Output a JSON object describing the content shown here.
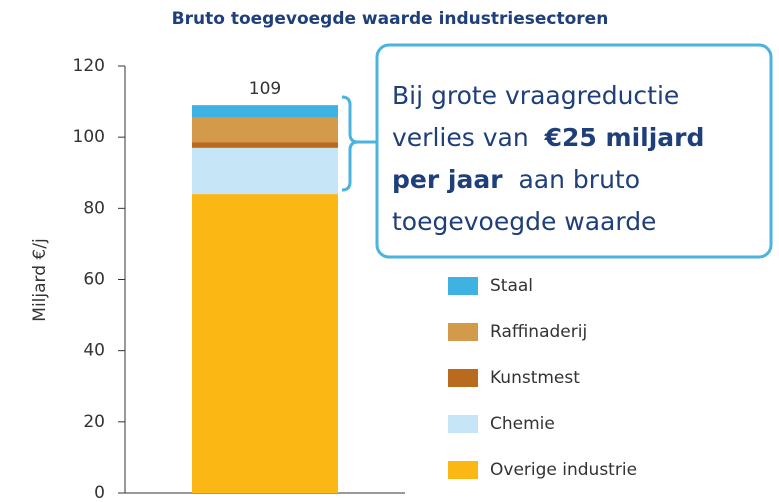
{
  "chart_data": {
    "type": "stacked_bar",
    "title": "Bruto toegevoegde waarde industriesectoren",
    "ylabel": "Miljard €/j",
    "categories": [
      null
    ],
    "series": [
      {
        "name": "Overige industrie",
        "color": "#fbb713",
        "values": [
          84
        ]
      },
      {
        "name": "Chemie",
        "color": "#c6e6f7",
        "values": [
          13
        ]
      },
      {
        "name": "Kunstmest",
        "color": "#b96a1c",
        "values": [
          1.5
        ]
      },
      {
        "name": "Raffinaderij",
        "color": "#d39a4c",
        "values": [
          7
        ]
      },
      {
        "name": "Staal",
        "color": "#3db2e3",
        "values": [
          3.5
        ]
      }
    ],
    "total": 109,
    "ylim": [
      0,
      120
    ],
    "yticks": [
      0,
      20,
      40,
      60,
      80,
      100,
      120
    ],
    "annotation": [
      "Bij grote vraagreductie",
      "verlies van",
      "€25 miljard",
      "per jaar",
      "aan bruto",
      "toegevoegde waarde"
    ]
  }
}
